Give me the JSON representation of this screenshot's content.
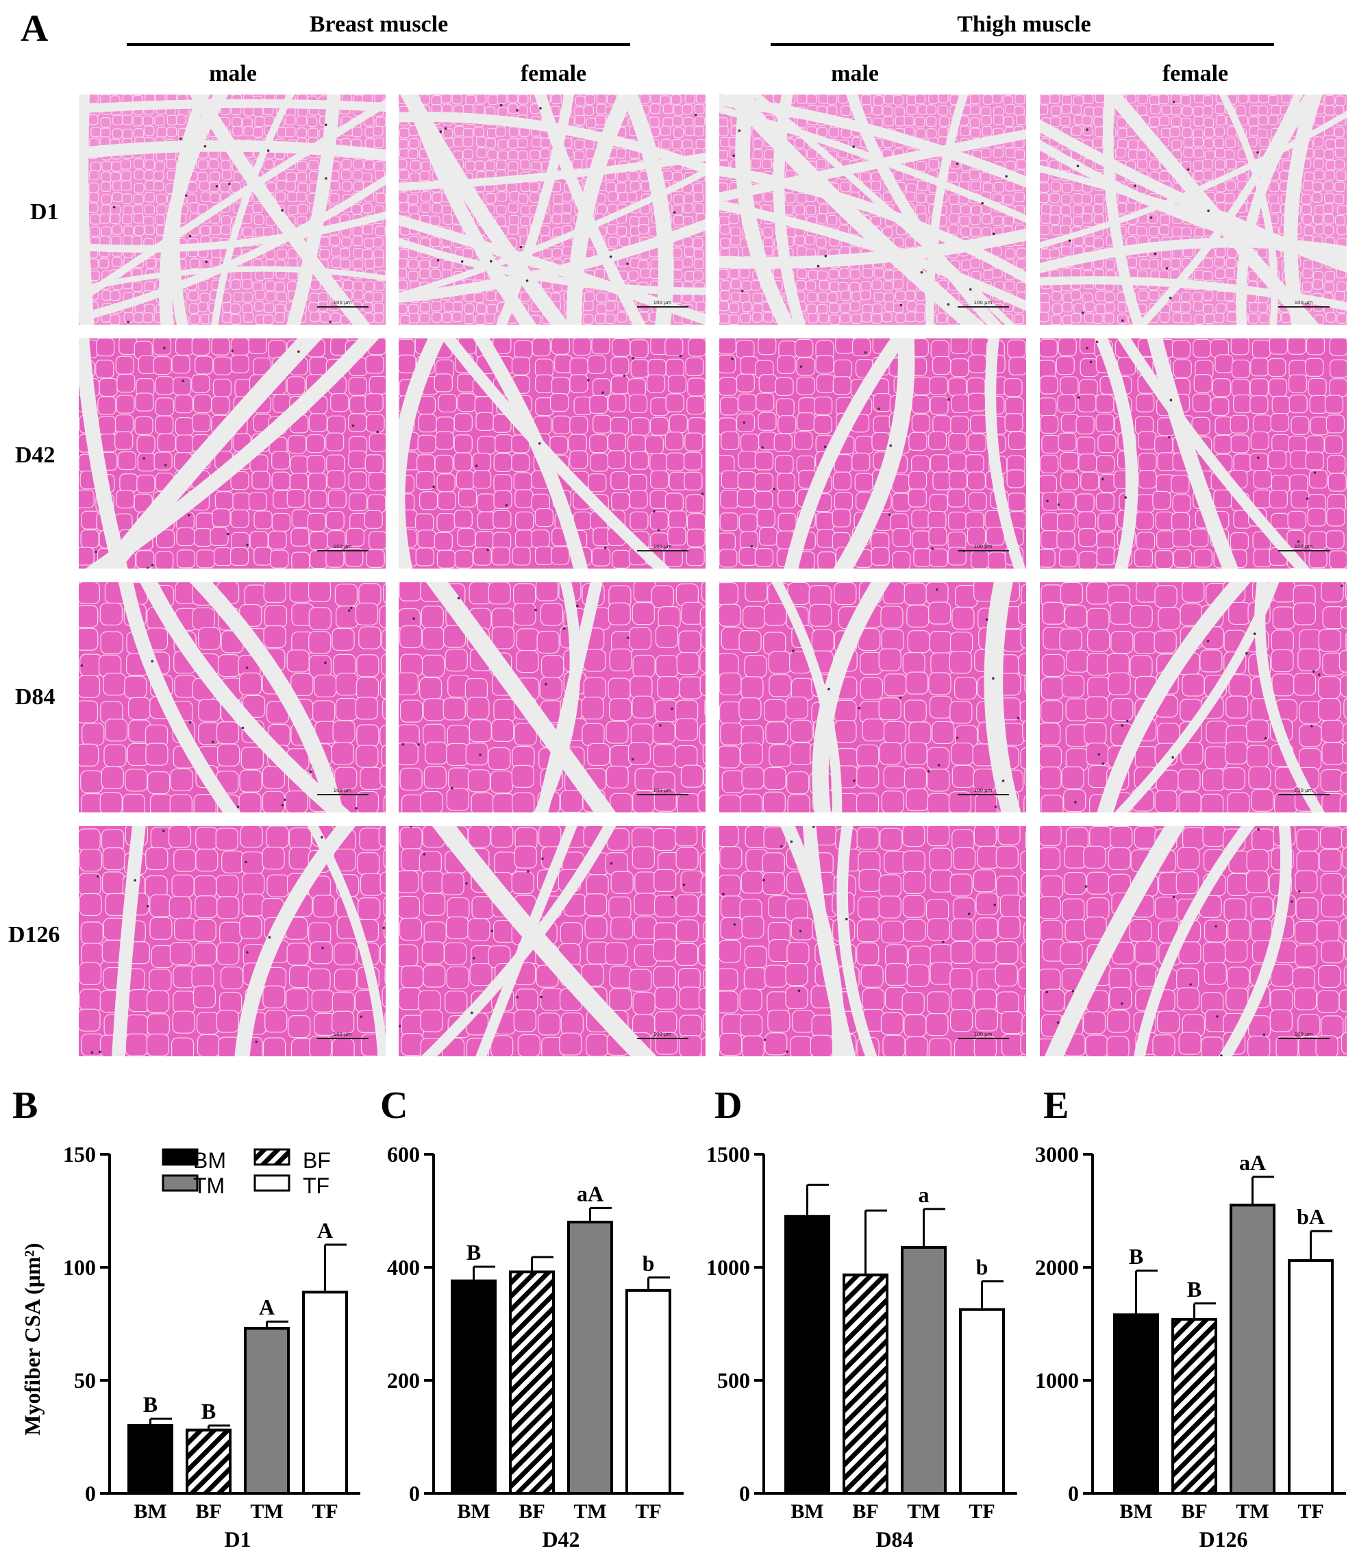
{
  "panel_a": {
    "letter": "A",
    "groups": [
      {
        "label": "Breast muscle",
        "sexes": [
          "male",
          "female"
        ]
      },
      {
        "label": "Thigh muscle",
        "sexes": [
          "male",
          "female"
        ]
      }
    ],
    "rows": [
      "D1",
      "D42",
      "D84",
      "D126"
    ],
    "scale_bar": "100 μm",
    "colors": {
      "tissue": "#e75fbd",
      "tissue_light": "#f08fd2",
      "connective": "#ececec",
      "fiber_edge": "#f7d6ec",
      "nucleus": "#4a2a4a"
    }
  },
  "legend": [
    {
      "code": "BM",
      "fill": "solid-black"
    },
    {
      "code": "BF",
      "fill": "diagonal-hatch"
    },
    {
      "code": "TM",
      "fill": "solid-gray"
    },
    {
      "code": "TF",
      "fill": "white"
    }
  ],
  "chart_data": [
    {
      "letter": "B",
      "type": "bar",
      "title": "D1",
      "ylabel": "Myofiber CSA (μm²)",
      "categories": [
        "BM",
        "BF",
        "TM",
        "TF"
      ],
      "values": [
        30,
        28,
        73,
        89
      ],
      "errors": [
        3,
        2,
        3,
        21
      ],
      "sig_labels": [
        "B",
        "B",
        "A",
        "A"
      ],
      "ylim": [
        0,
        150
      ],
      "yticks": [
        0,
        50,
        100,
        150
      ],
      "has_legend": true
    },
    {
      "letter": "C",
      "type": "bar",
      "title": "D42",
      "categories": [
        "BM",
        "BF",
        "TM",
        "TF"
      ],
      "values": [
        376,
        392,
        480,
        359
      ],
      "errors": [
        25,
        26,
        25,
        23
      ],
      "sig_labels": [
        "B",
        "",
        "aA",
        "b"
      ],
      "ylim": [
        0,
        600
      ],
      "yticks": [
        0,
        200,
        400,
        600
      ]
    },
    {
      "letter": "D",
      "type": "bar",
      "title": "D84",
      "categories": [
        "BM",
        "BF",
        "TM",
        "TF"
      ],
      "values": [
        1225,
        966,
        1088,
        813
      ],
      "errors": [
        140,
        285,
        170,
        125
      ],
      "sig_labels": [
        "",
        "",
        "a",
        "b"
      ],
      "ylim": [
        0,
        1500
      ],
      "yticks": [
        0,
        500,
        1000,
        1500
      ]
    },
    {
      "letter": "E",
      "type": "bar",
      "title": "D126",
      "categories": [
        "BM",
        "BF",
        "TM",
        "TF"
      ],
      "values": [
        1580,
        1540,
        2550,
        2060
      ],
      "errors": [
        390,
        140,
        250,
        260
      ],
      "sig_labels": [
        "B",
        "B",
        "aA",
        "bA"
      ],
      "ylim": [
        0,
        3000
      ],
      "yticks": [
        0,
        1000,
        2000,
        3000
      ]
    }
  ]
}
